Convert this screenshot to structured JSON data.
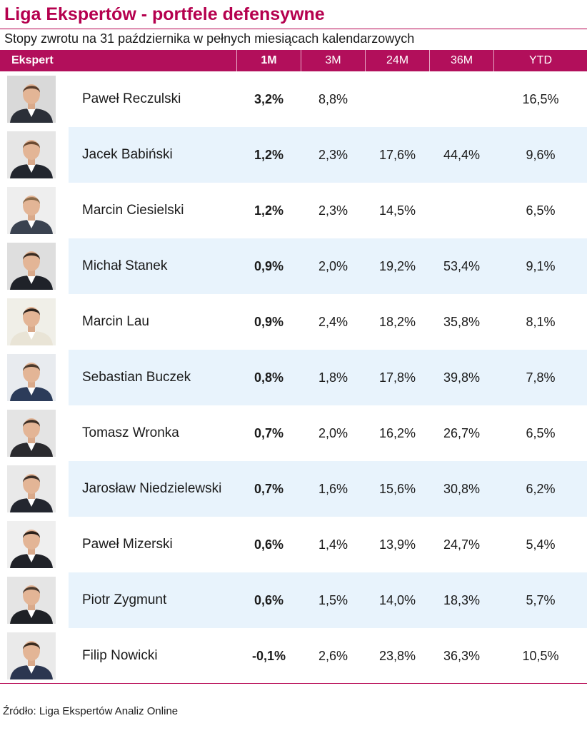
{
  "title": "Liga Ekspertów - portfele defensywne",
  "subtitle": "Stopy zwrotu na 31 października w pełnych miesiącach kalendarzowych",
  "columns": [
    "Ekspert",
    "1M",
    "3M",
    "24M",
    "36M",
    "YTD"
  ],
  "colors": {
    "accent": "#b5004e",
    "header_bg": "#b20f5b",
    "band": "#e8f3fc"
  },
  "rows": [
    {
      "name": "Paweł Reczulski",
      "m1": "3,2%",
      "m3": "8,8%",
      "m24": "",
      "m36": "",
      "ytd": "16,5%"
    },
    {
      "name": "Jacek Babiński",
      "m1": "1,2%",
      "m3": "2,3%",
      "m24": "17,6%",
      "m36": "44,4%",
      "ytd": "9,6%"
    },
    {
      "name": "Marcin Ciesielski",
      "m1": "1,2%",
      "m3": "2,3%",
      "m24": "14,5%",
      "m36": "",
      "ytd": "6,5%"
    },
    {
      "name": "Michał Stanek",
      "m1": "0,9%",
      "m3": "2,0%",
      "m24": "19,2%",
      "m36": "53,4%",
      "ytd": "9,1%"
    },
    {
      "name": "Marcin Lau",
      "m1": "0,9%",
      "m3": "2,4%",
      "m24": "18,2%",
      "m36": "35,8%",
      "ytd": "8,1%"
    },
    {
      "name": "Sebastian Buczek",
      "m1": "0,8%",
      "m3": "1,8%",
      "m24": "17,8%",
      "m36": "39,8%",
      "ytd": "7,8%"
    },
    {
      "name": "Tomasz Wronka",
      "m1": "0,7%",
      "m3": "2,0%",
      "m24": "16,2%",
      "m36": "26,7%",
      "ytd": "6,5%"
    },
    {
      "name": "Jarosław Niedzielewski",
      "m1": "0,7%",
      "m3": "1,6%",
      "m24": "15,6%",
      "m36": "30,8%",
      "ytd": "6,2%"
    },
    {
      "name": "Paweł Mizerski",
      "m1": "0,6%",
      "m3": "1,4%",
      "m24": "13,9%",
      "m36": "24,7%",
      "ytd": "5,4%"
    },
    {
      "name": "Piotr Zygmunt",
      "m1": "0,6%",
      "m3": "1,5%",
      "m24": "14,0%",
      "m36": "18,3%",
      "ytd": "5,7%"
    },
    {
      "name": "Filip Nowicki",
      "m1": "-0,1%",
      "m3": "2,6%",
      "m24": "23,8%",
      "m36": "36,3%",
      "ytd": "10,5%"
    }
  ],
  "source": "Źródło: Liga Ekspertów Analiz Online"
}
